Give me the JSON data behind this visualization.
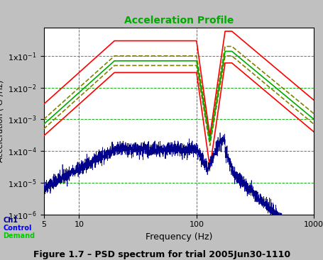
{
  "title": "Acceleration Profile",
  "xlabel": "Frequency (Hz)",
  "ylabel": "Acceleration ( G²/Hz)",
  "caption": "Figure 1.7 – PSD spectrum for trial 2005Jun30-1110",
  "legend_labels": [
    "Ch1",
    "Control",
    "Demand"
  ],
  "legend_colors": [
    "#000088",
    "#0000ff",
    "#00cc00"
  ],
  "background_color": "#c0c0c0",
  "plot_bg": "#ffffff",
  "title_color": "#00aa00",
  "grid_color": "#00aa00",
  "axis_label_color": "#000000",
  "xmin": 5,
  "xmax": 1000,
  "ymin": 1e-06,
  "ymax": 0.8,
  "red_upper": {
    "freq": [
      5,
      20,
      100,
      130,
      175,
      200,
      1000
    ],
    "psd": [
      0.003,
      0.3,
      0.3,
      0.0003,
      0.6,
      0.6,
      0.004
    ]
  },
  "red_lower": {
    "freq": [
      5,
      20,
      100,
      130,
      175,
      200,
      1000
    ],
    "psd": [
      0.0003,
      0.03,
      0.03,
      3e-05,
      0.06,
      0.06,
      0.0004
    ]
  },
  "olive_upper": {
    "freq": [
      5,
      20,
      100,
      130,
      175,
      200,
      1000
    ],
    "psd": [
      0.001,
      0.1,
      0.1,
      0.0003,
      0.2,
      0.2,
      0.0015
    ]
  },
  "olive_lower": {
    "freq": [
      5,
      20,
      100,
      130,
      175,
      200,
      1000
    ],
    "psd": [
      0.0005,
      0.05,
      0.05,
      0.00015,
      0.1,
      0.1,
      0.0007
    ]
  },
  "green_demand": {
    "freq": [
      5,
      20,
      100,
      130,
      175,
      200,
      1000
    ],
    "psd": [
      0.0007,
      0.07,
      0.07,
      0.0002,
      0.14,
      0.14,
      0.001
    ]
  }
}
